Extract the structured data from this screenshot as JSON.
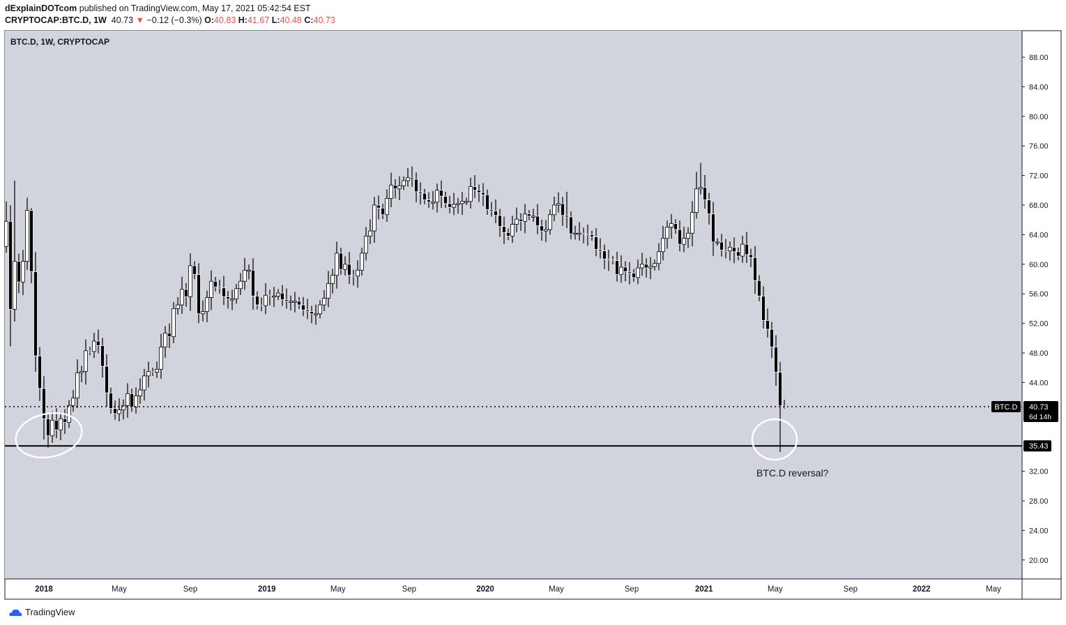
{
  "header": {
    "author": "dExplainDOTcom",
    "published": "published on TradingView.com, May 17, 2021 05:42:54 EST",
    "symbol": "CRYPTOCAP:BTC.D, 1W",
    "last": "40.73",
    "change": "−0.12 (−0.3%)",
    "o_label": "O:",
    "o": "40.83",
    "h_label": "H:",
    "h": "41.67",
    "l_label": "L:",
    "l": "40.48",
    "c_label": "C:",
    "c": "40.73"
  },
  "legend": "BTC.D, 1W, CRYPTOCAP",
  "footer": {
    "brand": "TradingView"
  },
  "colors": {
    "background": "#d1d4dc",
    "up": "#ffffff",
    "down": "#000000",
    "change": "#ef5350"
  },
  "chart_data": {
    "type": "candlestick",
    "title": "BTC.D, 1W, CRYPTOCAP",
    "interval": "1W",
    "ylim": [
      17,
      91
    ],
    "y_ticks": [
      "88.00",
      "84.00",
      "80.00",
      "76.00",
      "72.00",
      "68.00",
      "64.00",
      "60.00",
      "56.00",
      "52.00",
      "48.00",
      "44.00",
      "32.00",
      "28.00",
      "24.00",
      "20.00"
    ],
    "x_ticks": [
      {
        "label": "2018",
        "week": 9,
        "bold": true
      },
      {
        "label": "May",
        "week": 27
      },
      {
        "label": "Sep",
        "week": 44
      },
      {
        "label": "2019",
        "week": 62.3,
        "bold": true
      },
      {
        "label": "May",
        "week": 79.3
      },
      {
        "label": "Sep",
        "week": 96.3
      },
      {
        "label": "2020",
        "week": 114.5,
        "bold": true
      },
      {
        "label": "May",
        "week": 131.5
      },
      {
        "label": "Sep",
        "week": 149.5
      },
      {
        "label": "2021",
        "week": 166.8,
        "bold": true
      },
      {
        "label": "May",
        "week": 183.8
      },
      {
        "label": "Sep",
        "week": 201.8
      },
      {
        "label": "2022",
        "week": 218.8,
        "bold": true
      },
      {
        "label": "May",
        "week": 236
      }
    ],
    "first_open": 62.4,
    "closes": [
      65.8,
      53.9,
      60.4,
      57.6,
      60.4,
      67.3,
      59,
      47.6,
      43.2,
      39.1,
      36.8,
      38.9,
      37.6,
      39.1,
      38.6,
      40.9,
      41.9,
      45.3,
      45.5,
      48.3,
      48.2,
      49.6,
      49,
      46.2,
      42.6,
      40.5,
      39.8,
      40.3,
      40.9,
      42.5,
      40.7,
      42.2,
      43,
      44.9,
      45.5,
      45.4,
      45.8,
      48.8,
      50.7,
      50.2,
      54,
      54.5,
      56.6,
      55.6,
      59.8,
      58.6,
      53.3,
      53.6,
      55.5,
      57.7,
      56.9,
      56.8,
      55.6,
      55.3,
      55.3,
      56.7,
      57.7,
      59.2,
      59.2,
      55.7,
      54.5,
      54.4,
      55.8,
      55.7,
      55.7,
      56.1,
      55.2,
      55,
      55,
      55,
      54.5,
      53.8,
      53.6,
      53.3,
      53.3,
      54.5,
      55.4,
      57.4,
      58.5,
      61.5,
      59.3,
      60,
      58.5,
      58.4,
      59.2,
      61.5,
      63.8,
      64.5,
      68,
      67.6,
      66.7,
      68.9,
      70.7,
      70.2,
      70.6,
      71.3,
      71.7,
      71.5,
      69.8,
      69.6,
      68.7,
      68.4,
      68.4,
      70,
      69.2,
      68.2,
      67.7,
      68.1,
      68.2,
      68.5,
      68.5,
      70.5,
      70,
      69.7,
      69.4,
      67.4,
      67.2,
      66.6,
      65.1,
      64.3,
      63.8,
      65.4,
      66.1,
      65.8,
      66.8,
      66.5,
      66.5,
      65.2,
      64.5,
      64.7,
      66.7,
      68,
      68.2,
      66.6,
      66.4,
      64.1,
      64.2,
      64.2,
      64.1,
      64,
      63.7,
      62,
      61.8,
      60.7,
      60.6,
      60.5,
      58.6,
      59.6,
      59,
      58.8,
      58.2,
      59.5,
      60,
      59.5,
      59.7,
      60.1,
      61.7,
      63.5,
      65,
      65.5,
      64.7,
      62.7,
      63.5,
      64.2,
      67,
      70.2,
      70.4,
      68.7,
      66.8,
      63,
      63,
      61.9,
      61.8,
      62.3,
      61.7,
      61.1,
      62.7,
      61.3,
      60.9,
      57.8,
      55.7,
      52.4,
      51.2,
      48.8,
      45.4,
      40.85,
      40.73
    ],
    "high_overrides": {
      "0": 68.5,
      "2": 71.3,
      "5": 69,
      "6": 67.6,
      "96": 73,
      "134": 69.8,
      "165": 72.5,
      "166": 73.7,
      "185": 46.8,
      "186": 41.67
    },
    "low_overrides": {
      "1": 48.9,
      "9": 36.3,
      "10": 35.2,
      "185": 34.6,
      "186": 40.48
    },
    "last_open": 40.83,
    "price_line": {
      "label": "BTC.D",
      "value": "40.73",
      "countdown": "6d 14h"
    },
    "support_line": {
      "value": "35.43"
    },
    "annotation": "BTC.D reversal?"
  }
}
